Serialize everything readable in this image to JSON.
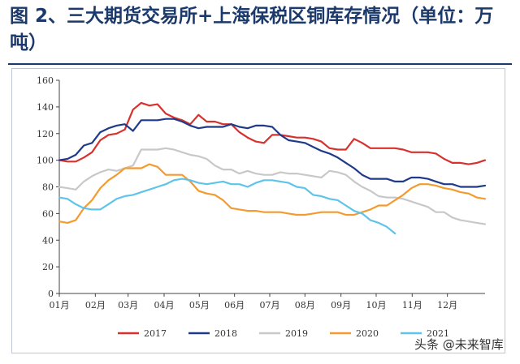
{
  "header": {
    "title": "图 2、三大期货交易所+上海保税区铜库存情况（单位：万吨）"
  },
  "watermark": "头条 @未来智库",
  "colors": {
    "title": "#1b3a6b",
    "s2017": "#d7312e",
    "s2018": "#1f3a8a",
    "s2019": "#c8c8c8",
    "s2020": "#f39b2f",
    "s2021": "#5fc3ea"
  },
  "chart_data": {
    "type": "line",
    "title": "",
    "xlabel": "",
    "ylabel": "",
    "ylim": [
      0,
      160
    ],
    "yticks": [
      0,
      20,
      40,
      60,
      80,
      100,
      120,
      140,
      160
    ],
    "xlim": [
      1,
      53
    ],
    "x_unit": "week of year",
    "x_ticks": [
      {
        "label": "01月",
        "x": 1
      },
      {
        "label": "02月",
        "x": 5.4
      },
      {
        "label": "03月",
        "x": 9.4
      },
      {
        "label": "04月",
        "x": 13.8
      },
      {
        "label": "05月",
        "x": 18.1
      },
      {
        "label": "06月",
        "x": 22.4
      },
      {
        "label": "07月",
        "x": 26.7
      },
      {
        "label": "08月",
        "x": 31.0
      },
      {
        "label": "09月",
        "x": 35.4
      },
      {
        "label": "10月",
        "x": 39.7
      },
      {
        "label": "11月",
        "x": 44.1
      },
      {
        "label": "12月",
        "x": 48.4
      }
    ],
    "grid": false,
    "legend_position": "bottom",
    "series": [
      {
        "name": "2017",
        "color": "#d7312e",
        "values": [
          [
            1,
            100
          ],
          [
            2,
            99
          ],
          [
            3,
            99
          ],
          [
            4,
            102
          ],
          [
            5,
            106
          ],
          [
            6,
            115
          ],
          [
            7,
            119
          ],
          [
            8,
            120
          ],
          [
            9,
            123
          ],
          [
            10,
            138
          ],
          [
            11,
            143
          ],
          [
            12,
            141
          ],
          [
            13,
            142
          ],
          [
            14,
            135
          ],
          [
            15,
            132
          ],
          [
            16,
            130
          ],
          [
            17,
            127
          ],
          [
            18,
            134
          ],
          [
            19,
            129
          ],
          [
            20,
            129
          ],
          [
            21,
            127
          ],
          [
            22,
            127
          ],
          [
            23,
            121
          ],
          [
            24,
            117
          ],
          [
            25,
            114
          ],
          [
            26,
            113
          ],
          [
            27,
            119
          ],
          [
            28,
            119
          ],
          [
            29,
            118
          ],
          [
            30,
            117
          ],
          [
            31,
            117
          ],
          [
            32,
            116
          ],
          [
            33,
            114
          ],
          [
            34,
            109
          ],
          [
            35,
            108
          ],
          [
            36,
            108
          ],
          [
            37,
            116
          ],
          [
            38,
            113
          ],
          [
            39,
            109
          ],
          [
            40,
            109
          ],
          [
            41,
            109
          ],
          [
            42,
            109
          ],
          [
            43,
            108
          ],
          [
            44,
            106
          ],
          [
            45,
            106
          ],
          [
            46,
            106
          ],
          [
            47,
            105
          ],
          [
            48,
            101
          ],
          [
            49,
            98
          ],
          [
            50,
            98
          ],
          [
            51,
            97
          ],
          [
            52,
            98
          ],
          [
            53,
            100
          ]
        ]
      },
      {
        "name": "2018",
        "color": "#1f3a8a",
        "values": [
          [
            1,
            100
          ],
          [
            2,
            101
          ],
          [
            3,
            104
          ],
          [
            4,
            111
          ],
          [
            5,
            113
          ],
          [
            6,
            121
          ],
          [
            7,
            124
          ],
          [
            8,
            126
          ],
          [
            9,
            127
          ],
          [
            10,
            122
          ],
          [
            11,
            130
          ],
          [
            12,
            130
          ],
          [
            13,
            130
          ],
          [
            14,
            131
          ],
          [
            15,
            131
          ],
          [
            16,
            129
          ],
          [
            17,
            126
          ],
          [
            18,
            124
          ],
          [
            19,
            125
          ],
          [
            20,
            125
          ],
          [
            21,
            125
          ],
          [
            22,
            127
          ],
          [
            23,
            125
          ],
          [
            24,
            124
          ],
          [
            25,
            126
          ],
          [
            26,
            126
          ],
          [
            27,
            125
          ],
          [
            28,
            119
          ],
          [
            29,
            115
          ],
          [
            30,
            114
          ],
          [
            31,
            113
          ],
          [
            32,
            110
          ],
          [
            33,
            107
          ],
          [
            34,
            105
          ],
          [
            35,
            102
          ],
          [
            36,
            98
          ],
          [
            37,
            94
          ],
          [
            38,
            89
          ],
          [
            39,
            86
          ],
          [
            40,
            86
          ],
          [
            41,
            86
          ],
          [
            42,
            84
          ],
          [
            43,
            84
          ],
          [
            44,
            87
          ],
          [
            45,
            87
          ],
          [
            46,
            86
          ],
          [
            47,
            84
          ],
          [
            48,
            82
          ],
          [
            49,
            82
          ],
          [
            50,
            80
          ],
          [
            51,
            80
          ],
          [
            52,
            80
          ],
          [
            53,
            81
          ]
        ]
      },
      {
        "name": "2019",
        "color": "#c8c8c8",
        "values": [
          [
            1,
            80
          ],
          [
            2,
            79
          ],
          [
            3,
            78
          ],
          [
            4,
            84
          ],
          [
            5,
            88
          ],
          [
            6,
            91
          ],
          [
            7,
            93
          ],
          [
            8,
            92
          ],
          [
            9,
            94
          ],
          [
            10,
            96
          ],
          [
            11,
            108
          ],
          [
            12,
            108
          ],
          [
            13,
            108
          ],
          [
            14,
            109
          ],
          [
            15,
            108
          ],
          [
            16,
            106
          ],
          [
            17,
            104
          ],
          [
            18,
            103
          ],
          [
            19,
            101
          ],
          [
            20,
            96
          ],
          [
            21,
            93
          ],
          [
            22,
            93
          ],
          [
            23,
            90
          ],
          [
            24,
            92
          ],
          [
            25,
            90
          ],
          [
            26,
            89
          ],
          [
            27,
            89
          ],
          [
            28,
            91
          ],
          [
            29,
            90
          ],
          [
            30,
            90
          ],
          [
            31,
            89
          ],
          [
            32,
            88
          ],
          [
            33,
            87
          ],
          [
            34,
            92
          ],
          [
            35,
            91
          ],
          [
            36,
            89
          ],
          [
            37,
            84
          ],
          [
            38,
            80
          ],
          [
            39,
            77
          ],
          [
            40,
            73
          ],
          [
            41,
            72
          ],
          [
            42,
            72
          ],
          [
            43,
            71
          ],
          [
            44,
            69
          ],
          [
            45,
            67
          ],
          [
            46,
            65
          ],
          [
            47,
            61
          ],
          [
            48,
            61
          ],
          [
            49,
            57
          ],
          [
            50,
            55
          ],
          [
            51,
            54
          ],
          [
            52,
            53
          ],
          [
            53,
            52
          ]
        ]
      },
      {
        "name": "2020",
        "color": "#f39b2f",
        "values": [
          [
            1,
            54
          ],
          [
            2,
            53
          ],
          [
            3,
            55
          ],
          [
            4,
            64
          ],
          [
            5,
            70
          ],
          [
            6,
            79
          ],
          [
            7,
            85
          ],
          [
            8,
            89
          ],
          [
            9,
            94
          ],
          [
            10,
            94
          ],
          [
            11,
            94
          ],
          [
            12,
            97
          ],
          [
            13,
            95
          ],
          [
            14,
            89
          ],
          [
            15,
            89
          ],
          [
            16,
            89
          ],
          [
            17,
            84
          ],
          [
            18,
            77
          ],
          [
            19,
            75
          ],
          [
            20,
            74
          ],
          [
            21,
            70
          ],
          [
            22,
            64
          ],
          [
            23,
            63
          ],
          [
            24,
            62
          ],
          [
            25,
            62
          ],
          [
            26,
            61
          ],
          [
            27,
            61
          ],
          [
            28,
            61
          ],
          [
            29,
            60
          ],
          [
            30,
            59
          ],
          [
            31,
            59
          ],
          [
            32,
            60
          ],
          [
            33,
            61
          ],
          [
            34,
            61
          ],
          [
            35,
            61
          ],
          [
            36,
            59
          ],
          [
            37,
            59
          ],
          [
            38,
            61
          ],
          [
            39,
            63
          ],
          [
            40,
            66
          ],
          [
            41,
            66
          ],
          [
            42,
            70
          ],
          [
            43,
            74
          ],
          [
            44,
            79
          ],
          [
            45,
            82
          ],
          [
            46,
            82
          ],
          [
            47,
            81
          ],
          [
            48,
            79
          ],
          [
            49,
            78
          ],
          [
            50,
            76
          ],
          [
            51,
            75
          ],
          [
            52,
            72
          ],
          [
            53,
            71
          ]
        ]
      },
      {
        "name": "2021",
        "color": "#5fc3ea",
        "values": [
          [
            1,
            72
          ],
          [
            2,
            71
          ],
          [
            3,
            67
          ],
          [
            4,
            64
          ],
          [
            5,
            63
          ],
          [
            6,
            63
          ],
          [
            7,
            67
          ],
          [
            8,
            71
          ],
          [
            9,
            73
          ],
          [
            10,
            74
          ],
          [
            11,
            76
          ],
          [
            12,
            78
          ],
          [
            13,
            80
          ],
          [
            14,
            82
          ],
          [
            15,
            85
          ],
          [
            16,
            86
          ],
          [
            17,
            85
          ],
          [
            18,
            83
          ],
          [
            19,
            82
          ],
          [
            20,
            83
          ],
          [
            21,
            84
          ],
          [
            22,
            82
          ],
          [
            23,
            82
          ],
          [
            24,
            80
          ],
          [
            25,
            83
          ],
          [
            26,
            85
          ],
          [
            27,
            85
          ],
          [
            28,
            84
          ],
          [
            29,
            83
          ],
          [
            30,
            80
          ],
          [
            31,
            79
          ],
          [
            32,
            74
          ],
          [
            33,
            73
          ],
          [
            34,
            71
          ],
          [
            35,
            70
          ],
          [
            36,
            66
          ],
          [
            37,
            62
          ],
          [
            38,
            60
          ],
          [
            39,
            55
          ],
          [
            40,
            53
          ],
          [
            41,
            50
          ],
          [
            42,
            45
          ]
        ]
      }
    ]
  }
}
